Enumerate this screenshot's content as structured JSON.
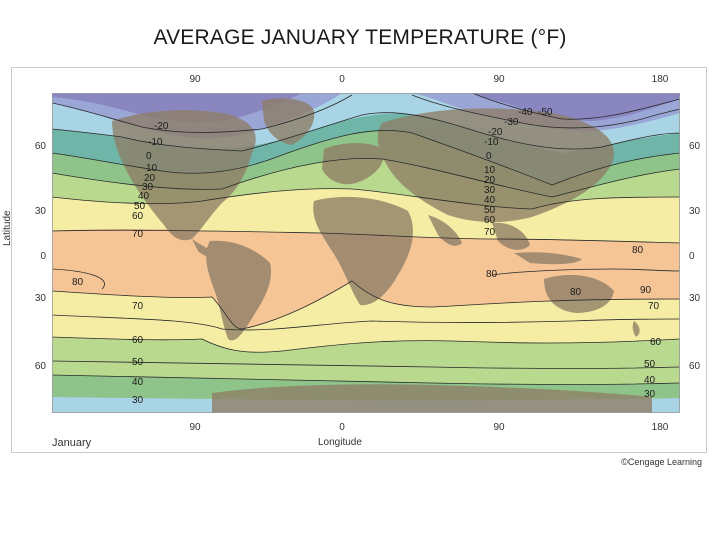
{
  "title": "AVERAGE JANUARY TEMPERATURE (°F)",
  "month": "January",
  "credit": "©Cengage Learning",
  "axes": {
    "xlabel": "Longitude",
    "ylabel": "Latitude",
    "lon_top": [
      "90",
      "0",
      "90",
      "180"
    ],
    "lon_bottom": [
      "90",
      "0",
      "90",
      "180"
    ],
    "lat_left": [
      "60",
      "30",
      "0",
      "30",
      "60"
    ],
    "lat_right": [
      "60",
      "30",
      "0",
      "30",
      "60"
    ]
  },
  "isotherm_labels": {
    "west_north": [
      "-20",
      "-10",
      "0",
      "10",
      "20",
      "30",
      "40",
      "50",
      "60",
      "70"
    ],
    "east_north": [
      "-10",
      "0",
      "10",
      "20",
      "30",
      "40",
      "50",
      "60",
      "70"
    ],
    "siberia": [
      "-30",
      "-40",
      "-50",
      "-20"
    ],
    "tropics": [
      "80",
      "80",
      "80",
      "80",
      "90"
    ],
    "south_west": [
      "70",
      "60",
      "50",
      "40",
      "30"
    ],
    "south_east": [
      "70",
      "60",
      "50",
      "40",
      "30"
    ]
  },
  "colors": {
    "band_below_minus_30": "#8a86c0",
    "band_minus_30_to_minus_10": "#9aa6d6",
    "band_minus_10_to_10": "#a9d4e6",
    "band_10_to_30": "#6fb5a8",
    "band_30_to_50": "#8ec48a",
    "band_50_to_70": "#b9d98f",
    "band_70_to_80": "#f6eda4",
    "band_above_80": "#f5c596",
    "land": "#8e7d66"
  }
}
